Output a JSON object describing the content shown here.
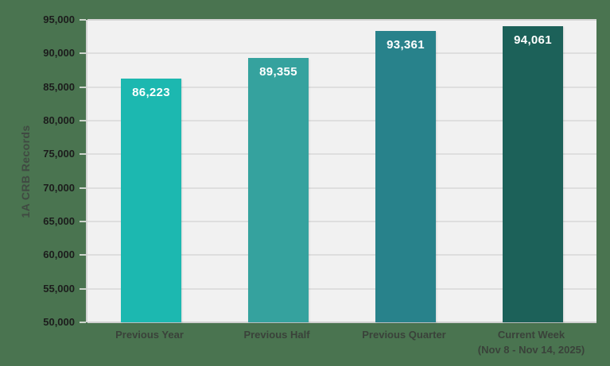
{
  "chart_data": {
    "type": "bar",
    "title": "",
    "ylabel": "1A CRB Records",
    "xlabel": "",
    "categories": [
      {
        "label": "Previous Year",
        "sublabel": ""
      },
      {
        "label": "Previous Half",
        "sublabel": ""
      },
      {
        "label": "Previous Quarter",
        "sublabel": ""
      },
      {
        "label": "Current Week",
        "sublabel": "(Nov 8 - Nov 14, 2025)"
      }
    ],
    "values": [
      86223,
      89355,
      93361,
      94061
    ],
    "value_labels": [
      "86,223",
      "89,355",
      "93,361",
      "94,061"
    ],
    "bar_colors": [
      "#1cb8b0",
      "#35a29e",
      "#28828b",
      "#1c6159"
    ],
    "ylim": [
      50000,
      95000
    ],
    "ytick_step": 5000,
    "ytick_labels": [
      "50,000",
      "55,000",
      "60,000",
      "65,000",
      "70,000",
      "75,000",
      "80,000",
      "85,000",
      "90,000",
      "95,000"
    ],
    "grid": true,
    "legend_position": "none"
  },
  "colors": {
    "background": "#4a7450",
    "plot_background": "#f1f1f1",
    "gridline": "#dedede",
    "tick": "#ccd4cb",
    "ytick_text": "#1c1c1c",
    "category_text": "#3a423a",
    "ylabel_text": "#404a42",
    "bar_label_text": "#ffffff"
  }
}
